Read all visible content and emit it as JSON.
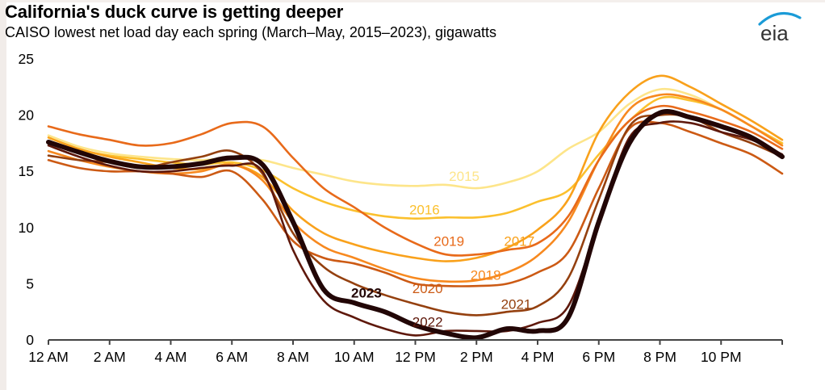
{
  "header": {
    "title": "California's duck curve is getting deeper",
    "subtitle": "CAISO lowest net load day each spring (March–May, 2015–2023), gigawatts"
  },
  "logo": {
    "text": "eia",
    "icon": "eia-logo-icon",
    "arc_color": "#1a9bd7",
    "text_color": "#333333"
  },
  "chart_data": {
    "type": "line",
    "title": "California's duck curve is getting deeper",
    "subtitle": "CAISO lowest net load day each spring (March–May, 2015–2023), gigawatts",
    "xlabel": "",
    "ylabel": "gigawatts",
    "x_unit": "hour of day",
    "x": [
      0,
      1,
      2,
      3,
      4,
      5,
      6,
      7,
      8,
      9,
      10,
      11,
      12,
      13,
      14,
      15,
      16,
      17,
      18,
      19,
      20,
      21,
      22,
      23,
      24
    ],
    "xlim": [
      0,
      24
    ],
    "ylim": [
      0,
      25
    ],
    "x_ticks": [
      {
        "value": 0,
        "label": "12 AM"
      },
      {
        "value": 2,
        "label": "2 AM"
      },
      {
        "value": 4,
        "label": "4 AM"
      },
      {
        "value": 6,
        "label": "6 AM"
      },
      {
        "value": 8,
        "label": "8 AM"
      },
      {
        "value": 10,
        "label": "10 AM"
      },
      {
        "value": 12,
        "label": "12 PM"
      },
      {
        "value": 14,
        "label": "2 PM"
      },
      {
        "value": 16,
        "label": "4 PM"
      },
      {
        "value": 18,
        "label": "6 PM"
      },
      {
        "value": 20,
        "label": "8 PM"
      },
      {
        "value": 22,
        "label": "10 PM"
      },
      {
        "value": 24,
        "label": ""
      }
    ],
    "y_ticks": [
      {
        "value": 0,
        "label": "0"
      },
      {
        "value": 5,
        "label": "5"
      },
      {
        "value": 10,
        "label": "10"
      },
      {
        "value": 15,
        "label": "15"
      },
      {
        "value": 20,
        "label": "20"
      },
      {
        "value": 25,
        "label": "25"
      }
    ],
    "grid": false,
    "legend": "inline labels",
    "series": [
      {
        "name": "2015",
        "color": "#fde58a",
        "emphasis": false,
        "label_at": [
          13.6,
          14.6
        ],
        "values": [
          18.2,
          17.2,
          16.6,
          16.3,
          16.1,
          16.0,
          16.2,
          16.0,
          15.3,
          14.7,
          14.1,
          13.8,
          13.7,
          13.8,
          13.5,
          14.0,
          15.0,
          17.0,
          18.5,
          21.0,
          22.3,
          21.8,
          20.5,
          19.0,
          17.5
        ]
      },
      {
        "name": "2016",
        "color": "#fbc02d",
        "emphasis": false,
        "label_at": [
          12.3,
          11.6
        ],
        "values": [
          17.6,
          16.9,
          16.4,
          16.1,
          15.8,
          15.6,
          15.8,
          15.1,
          13.5,
          12.3,
          11.5,
          11.0,
          10.8,
          10.9,
          10.9,
          11.3,
          12.3,
          13.3,
          16.5,
          19.5,
          21.5,
          21.3,
          20.5,
          19.0,
          17.5
        ]
      },
      {
        "name": "2017",
        "color": "#f9a11b",
        "emphasis": false,
        "label_at": [
          15.4,
          8.8
        ],
        "values": [
          18.0,
          17.0,
          16.3,
          15.8,
          15.3,
          15.2,
          15.6,
          14.5,
          11.5,
          9.5,
          8.5,
          7.8,
          7.3,
          7.0,
          7.3,
          8.2,
          9.8,
          12.5,
          18.5,
          22.0,
          23.5,
          22.5,
          21.0,
          19.5,
          17.8
        ]
      },
      {
        "name": "2018",
        "color": "#f7891f",
        "emphasis": false,
        "label_at": [
          14.3,
          5.8
        ],
        "values": [
          16.8,
          16.0,
          15.4,
          15.0,
          14.8,
          15.0,
          15.6,
          14.2,
          10.5,
          8.3,
          7.3,
          6.3,
          5.5,
          5.2,
          5.3,
          6.0,
          7.5,
          10.5,
          16.0,
          20.5,
          21.8,
          21.5,
          20.5,
          19.0,
          17.3
        ]
      },
      {
        "name": "2019",
        "color": "#e86a1a",
        "emphasis": false,
        "label_at": [
          13.1,
          8.8
        ],
        "values": [
          19.0,
          18.3,
          17.8,
          17.3,
          17.5,
          18.3,
          19.3,
          19.0,
          16.2,
          13.5,
          11.8,
          10.0,
          8.6,
          7.6,
          7.6,
          8.0,
          8.6,
          11.0,
          16.0,
          19.5,
          20.8,
          20.3,
          19.5,
          18.5,
          17.0
        ]
      },
      {
        "name": "2020",
        "color": "#cc5a14",
        "emphasis": false,
        "label_at": [
          12.4,
          4.6
        ],
        "values": [
          16.0,
          15.3,
          15.0,
          15.0,
          14.8,
          14.5,
          15.0,
          12.5,
          8.8,
          7.3,
          6.8,
          6.0,
          5.0,
          4.8,
          4.8,
          5.0,
          6.0,
          7.8,
          13.5,
          18.8,
          19.3,
          18.5,
          17.5,
          16.5,
          14.8
        ]
      },
      {
        "name": "2021",
        "color": "#94400f",
        "emphasis": false,
        "label_at": [
          15.3,
          3.2
        ],
        "values": [
          16.4,
          16.0,
          15.8,
          15.3,
          15.8,
          16.3,
          16.8,
          14.8,
          9.5,
          6.5,
          5.0,
          4.0,
          3.2,
          2.5,
          2.2,
          2.5,
          3.0,
          5.5,
          12.5,
          19.0,
          20.0,
          19.8,
          18.5,
          17.5,
          16.3
        ]
      },
      {
        "name": "2022",
        "color": "#5e180b",
        "emphasis": false,
        "label_at": [
          12.4,
          1.6
        ],
        "values": [
          17.3,
          16.3,
          15.5,
          15.0,
          15.0,
          15.3,
          15.5,
          15.0,
          8.0,
          3.5,
          2.0,
          1.0,
          0.4,
          0.8,
          0.8,
          0.8,
          1.5,
          3.0,
          10.5,
          18.0,
          19.3,
          19.3,
          18.5,
          17.8,
          16.5
        ]
      },
      {
        "name": "2023",
        "color": "#220606",
        "emphasis": true,
        "label_at": [
          10.4,
          4.2
        ],
        "values": [
          17.6,
          16.7,
          15.9,
          15.4,
          15.4,
          15.7,
          16.2,
          15.6,
          10.5,
          4.5,
          3.3,
          2.5,
          1.3,
          0.6,
          0.2,
          1.0,
          0.8,
          2.0,
          10.5,
          17.5,
          20.2,
          19.8,
          19.0,
          18.0,
          16.3
        ]
      }
    ]
  }
}
